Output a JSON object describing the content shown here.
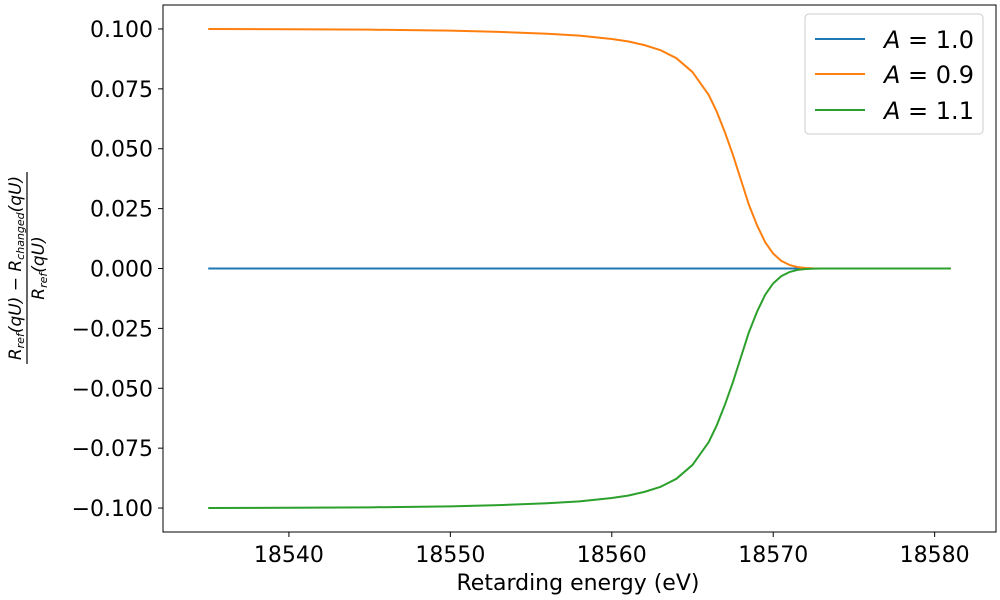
{
  "chart_data": {
    "type": "line",
    "title": "",
    "xlabel": "Retarding energy (eV)",
    "ylabel": {
      "num_a": "R",
      "num_a_sub": "ref",
      "num_a_arg": "(qU) − ",
      "num_b": "R",
      "num_b_sub": "changed",
      "num_b_arg": "(qU)",
      "den": "R",
      "den_sub": "ref",
      "den_arg": "(qU)"
    },
    "xlim": [
      18532.2,
      18583.8
    ],
    "ylim": [
      -0.11,
      0.11
    ],
    "xticks": [
      18540,
      18550,
      18560,
      18570,
      18580
    ],
    "xtick_labels": [
      "18540",
      "18550",
      "18560",
      "18570",
      "18580"
    ],
    "yticks": [
      -0.1,
      -0.075,
      -0.05,
      -0.025,
      0.0,
      0.025,
      0.05,
      0.075,
      0.1
    ],
    "ytick_labels": [
      "−0.100",
      "−0.075",
      "−0.050",
      "−0.025",
      "0.000",
      "0.025",
      "0.050",
      "0.075",
      "0.100"
    ],
    "grid": false,
    "legend_position": "top-right",
    "x": [
      18535,
      18540,
      18545,
      18550,
      18553,
      18556,
      18558,
      18560,
      18561,
      18562,
      18563,
      18564,
      18565,
      18566,
      18566.5,
      18567,
      18567.5,
      18568,
      18568.5,
      18569,
      18569.5,
      18570,
      18570.5,
      18571,
      18571.5,
      18572,
      18572.5,
      18573,
      18574,
      18575,
      18578,
      18581
    ],
    "series": [
      {
        "name": "A = 1.0",
        "legend_var": "A",
        "legend_val": " = 1.0",
        "color": "#1f77b4",
        "values": [
          0,
          0,
          0,
          0,
          0,
          0,
          0,
          0,
          0,
          0,
          0,
          0,
          0,
          0,
          0,
          0,
          0,
          0,
          0,
          0,
          0,
          0,
          0,
          0,
          0,
          0,
          0,
          0,
          0,
          0,
          0,
          0
        ]
      },
      {
        "name": "A = 0.9",
        "legend_var": "A",
        "legend_val": " = 0.9",
        "color": "#ff7f0e",
        "values": [
          0.1,
          0.0999,
          0.0997,
          0.0993,
          0.0988,
          0.098,
          0.0972,
          0.0958,
          0.0948,
          0.0933,
          0.0912,
          0.0878,
          0.082,
          0.0725,
          0.0655,
          0.057,
          0.0475,
          0.037,
          0.0265,
          0.018,
          0.011,
          0.0062,
          0.0032,
          0.0015,
          0.0006,
          0.0002,
          5e-05,
          0,
          0,
          0,
          0,
          0
        ]
      },
      {
        "name": "A = 1.1",
        "legend_var": "A",
        "legend_val": " = 1.1",
        "color": "#2ca02c",
        "values": [
          -0.1,
          -0.0999,
          -0.0997,
          -0.0993,
          -0.0988,
          -0.098,
          -0.0972,
          -0.0958,
          -0.0948,
          -0.0933,
          -0.0912,
          -0.0878,
          -0.082,
          -0.0725,
          -0.0655,
          -0.057,
          -0.0475,
          -0.037,
          -0.0265,
          -0.018,
          -0.011,
          -0.0062,
          -0.0032,
          -0.0015,
          -0.0006,
          -0.0002,
          -5e-05,
          0,
          0,
          0,
          0,
          0
        ]
      }
    ]
  }
}
